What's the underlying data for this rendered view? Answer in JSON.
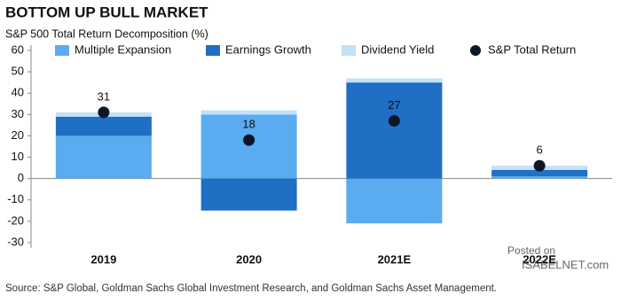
{
  "chart_data": {
    "type": "bar",
    "title": "BOTTOM UP BULL MARKET",
    "subtitle": "S&P 500 Total Return Decomposition (%)",
    "categories": [
      "2019",
      "2020",
      "2021E",
      "2022E"
    ],
    "series": [
      {
        "name": "Multiple Expansion",
        "color": "#5aabef",
        "values": [
          20,
          30,
          -21,
          1
        ]
      },
      {
        "name": "Earnings Growth",
        "color": "#1f6fc4",
        "values": [
          9,
          -15,
          45,
          3
        ]
      },
      {
        "name": "Dividend Yield",
        "color": "#c3e1f7",
        "values": [
          2,
          2,
          2,
          2
        ]
      },
      {
        "name": "S&P Total Return",
        "color": "#0d1626",
        "mark": "dot",
        "values": [
          31,
          18,
          27,
          6
        ]
      }
    ],
    "ylim": [
      -30,
      60
    ],
    "yticks": [
      -30,
      -20,
      -10,
      0,
      10,
      20,
      30,
      40,
      50,
      60
    ],
    "source": "Source: S&P Global, Goldman Sachs Global Investment Research, and Goldman Sachs Asset Management.",
    "watermark": [
      "Posted on",
      "ISABELNET.com"
    ]
  }
}
